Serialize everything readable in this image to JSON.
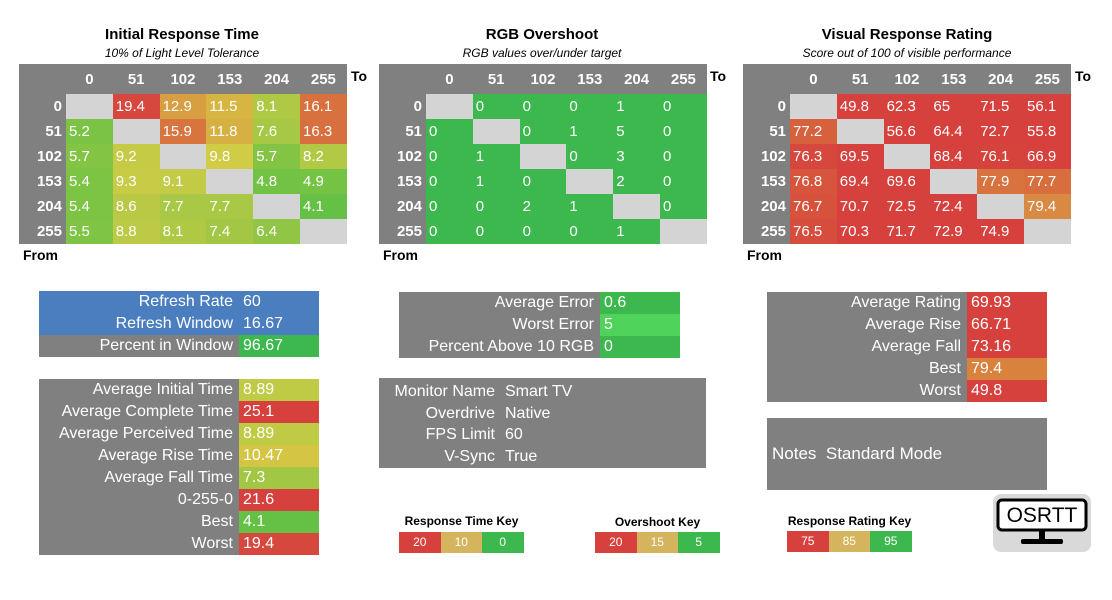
{
  "colors": {
    "grey": "#808080",
    "diag": "#d4d4d4",
    "blue": "#4a7ebf",
    "green": "#3cb84e",
    "bright_green": "#4fd35a",
    "key_red": "#d6403d",
    "key_yellow": "#d4b45c",
    "key_orange": "#d9864a"
  },
  "chart_data": [
    {
      "type": "heatmap",
      "id": "initial",
      "title": "Initial Response Time",
      "subtitle": "10% of Light Level Tolerance",
      "to_label": "To",
      "from_label": "From",
      "levels": [
        "0",
        "51",
        "102",
        "153",
        "204",
        "255"
      ],
      "scale": {
        "good": 0,
        "mid": 10,
        "bad": 20
      },
      "matrix": [
        [
          null,
          "19.4",
          "12.9",
          "11.5",
          "8.1",
          "16.1"
        ],
        [
          "5.2",
          null,
          "15.9",
          "11.8",
          "7.6",
          "16.3"
        ],
        [
          "5.7",
          "9.2",
          null,
          "9.8",
          "5.7",
          "8.2"
        ],
        [
          "5.4",
          "9.3",
          "9.1",
          null,
          "4.8",
          "4.9"
        ],
        [
          "5.4",
          "8.6",
          "7.7",
          "7.7",
          null,
          "4.1"
        ],
        [
          "5.5",
          "8.8",
          "8.1",
          "7.4",
          "6.4",
          null
        ]
      ]
    },
    {
      "type": "heatmap",
      "id": "overshoot",
      "title": "RGB Overshoot",
      "subtitle": "RGB values over/under target",
      "to_label": "To",
      "from_label": "From",
      "levels": [
        "0",
        "51",
        "102",
        "153",
        "204",
        "255"
      ],
      "scale": {
        "good": 5,
        "mid": 15,
        "bad": 20
      },
      "matrix": [
        [
          null,
          "0",
          "0",
          "0",
          "1",
          "0"
        ],
        [
          "0",
          null,
          "0",
          "1",
          "5",
          "0"
        ],
        [
          "0",
          "1",
          null,
          "0",
          "3",
          "0"
        ],
        [
          "0",
          "1",
          "0",
          null,
          "2",
          "0"
        ],
        [
          "0",
          "0",
          "2",
          "1",
          null,
          "0"
        ],
        [
          "0",
          "0",
          "0",
          "0",
          "1",
          null
        ]
      ]
    },
    {
      "type": "heatmap",
      "id": "rating",
      "title": "Visual Response Rating",
      "subtitle": "Score out of 100 of visible performance",
      "to_label": "To",
      "from_label": "From",
      "levels": [
        "0",
        "51",
        "102",
        "153",
        "204",
        "255"
      ],
      "scale": {
        "bad": 75,
        "mid": 85,
        "good": 95
      },
      "matrix": [
        [
          null,
          "49.8",
          "62.3",
          "65",
          "71.5",
          "56.1"
        ],
        [
          "77.2",
          null,
          "56.6",
          "64.4",
          "72.7",
          "55.8"
        ],
        [
          "76.3",
          "69.5",
          null,
          "68.4",
          "76.1",
          "66.9"
        ],
        [
          "76.8",
          "69.4",
          "69.6",
          null,
          "77.9",
          "77.7"
        ],
        [
          "76.7",
          "70.7",
          "72.5",
          "72.4",
          null,
          "79.4"
        ],
        [
          "76.5",
          "70.3",
          "71.7",
          "72.9",
          "74.9",
          null
        ]
      ]
    }
  ],
  "refresh_panel": {
    "rows": [
      {
        "label": "Refresh Rate",
        "value": "60"
      },
      {
        "label": "Refresh Window",
        "value": "16.67"
      },
      {
        "label": "Percent in Window",
        "value": "96.67"
      }
    ]
  },
  "time_panel": {
    "rows": [
      {
        "label": "Average Initial Time",
        "value": "8.89"
      },
      {
        "label": "Average Complete Time",
        "value": "25.1"
      },
      {
        "label": "Average Perceived Time",
        "value": "8.89"
      },
      {
        "label": "Average Rise Time",
        "value": "10.47"
      },
      {
        "label": "Average Fall Time",
        "value": "7.3"
      },
      {
        "label": "0-255-0",
        "value": "21.6"
      },
      {
        "label": "Best",
        "value": "4.1"
      },
      {
        "label": "Worst",
        "value": "19.4"
      }
    ]
  },
  "error_panel": {
    "rows": [
      {
        "label": "Average Error",
        "value": "0.6"
      },
      {
        "label": "Worst Error",
        "value": "5"
      },
      {
        "label": "Percent Above 10 RGB",
        "value": "0"
      }
    ]
  },
  "monitor_panel": {
    "rows": [
      {
        "label": "Monitor Name",
        "value": "Smart TV"
      },
      {
        "label": "Overdrive",
        "value": "Native"
      },
      {
        "label": "FPS Limit",
        "value": "60"
      },
      {
        "label": "V-Sync",
        "value": "True"
      }
    ]
  },
  "rating_panel": {
    "rows": [
      {
        "label": "Average Rating",
        "value": "69.93"
      },
      {
        "label": "Average Rise",
        "value": "66.71"
      },
      {
        "label": "Average Fall",
        "value": "73.16"
      },
      {
        "label": "Best",
        "value": "79.4"
      },
      {
        "label": "Worst",
        "value": "49.8"
      }
    ]
  },
  "notes_panel": {
    "label": "Notes",
    "value": "Standard Mode"
  },
  "keys": {
    "response": {
      "title": "Response Time Key",
      "cells": [
        "20",
        "10",
        "0"
      ]
    },
    "overshoot": {
      "title": "Overshoot Key",
      "cells": [
        "20",
        "15",
        "5"
      ]
    },
    "rating": {
      "title": "Response Rating Key",
      "cells": [
        "75",
        "85",
        "95"
      ]
    }
  },
  "logo": {
    "text": "OSRTT"
  }
}
